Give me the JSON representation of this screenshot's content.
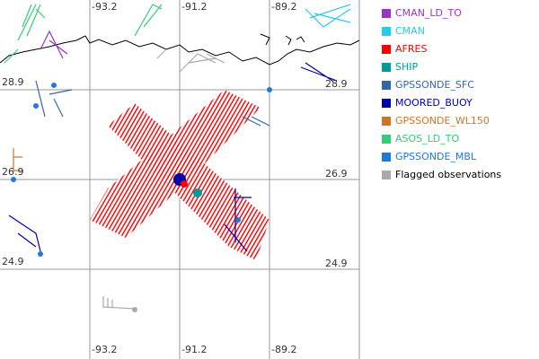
{
  "map": {
    "lon_labels": [
      "-93.2",
      "-91.2",
      "-89.2"
    ],
    "lat_labels": [
      "28.9",
      "26.9",
      "24.9"
    ]
  },
  "legend": {
    "items": [
      {
        "name": "CMAN_LD_TO",
        "color": "#9933cc",
        "text_color": "#9933cc"
      },
      {
        "name": "CMAN",
        "color": "#22ccee",
        "text_color": "#22ccee"
      },
      {
        "name": "AFRES",
        "color": "#ff0000",
        "text_color": "#ff0000"
      },
      {
        "name": "SHIP",
        "color": "#009999",
        "text_color": "#009999"
      },
      {
        "name": "GPSSONDE_SFC",
        "color": "#3366aa",
        "text_color": "#3366aa"
      },
      {
        "name": "MOORED_BUOY",
        "color": "#0000aa",
        "text_color": "#0000aa"
      },
      {
        "name": "GPSSONDE_WL150",
        "color": "#cc7722",
        "text_color": "#cc7722"
      },
      {
        "name": "ASOS_LD_TO",
        "color": "#33cc77",
        "text_color": "#33cc77"
      },
      {
        "name": "GPSSONDE_MBL",
        "color": "#2277dd",
        "text_color": "#2277dd"
      },
      {
        "name": "Flagged observations",
        "color": "#aaaaaa",
        "text_color": "#000000"
      }
    ]
  }
}
